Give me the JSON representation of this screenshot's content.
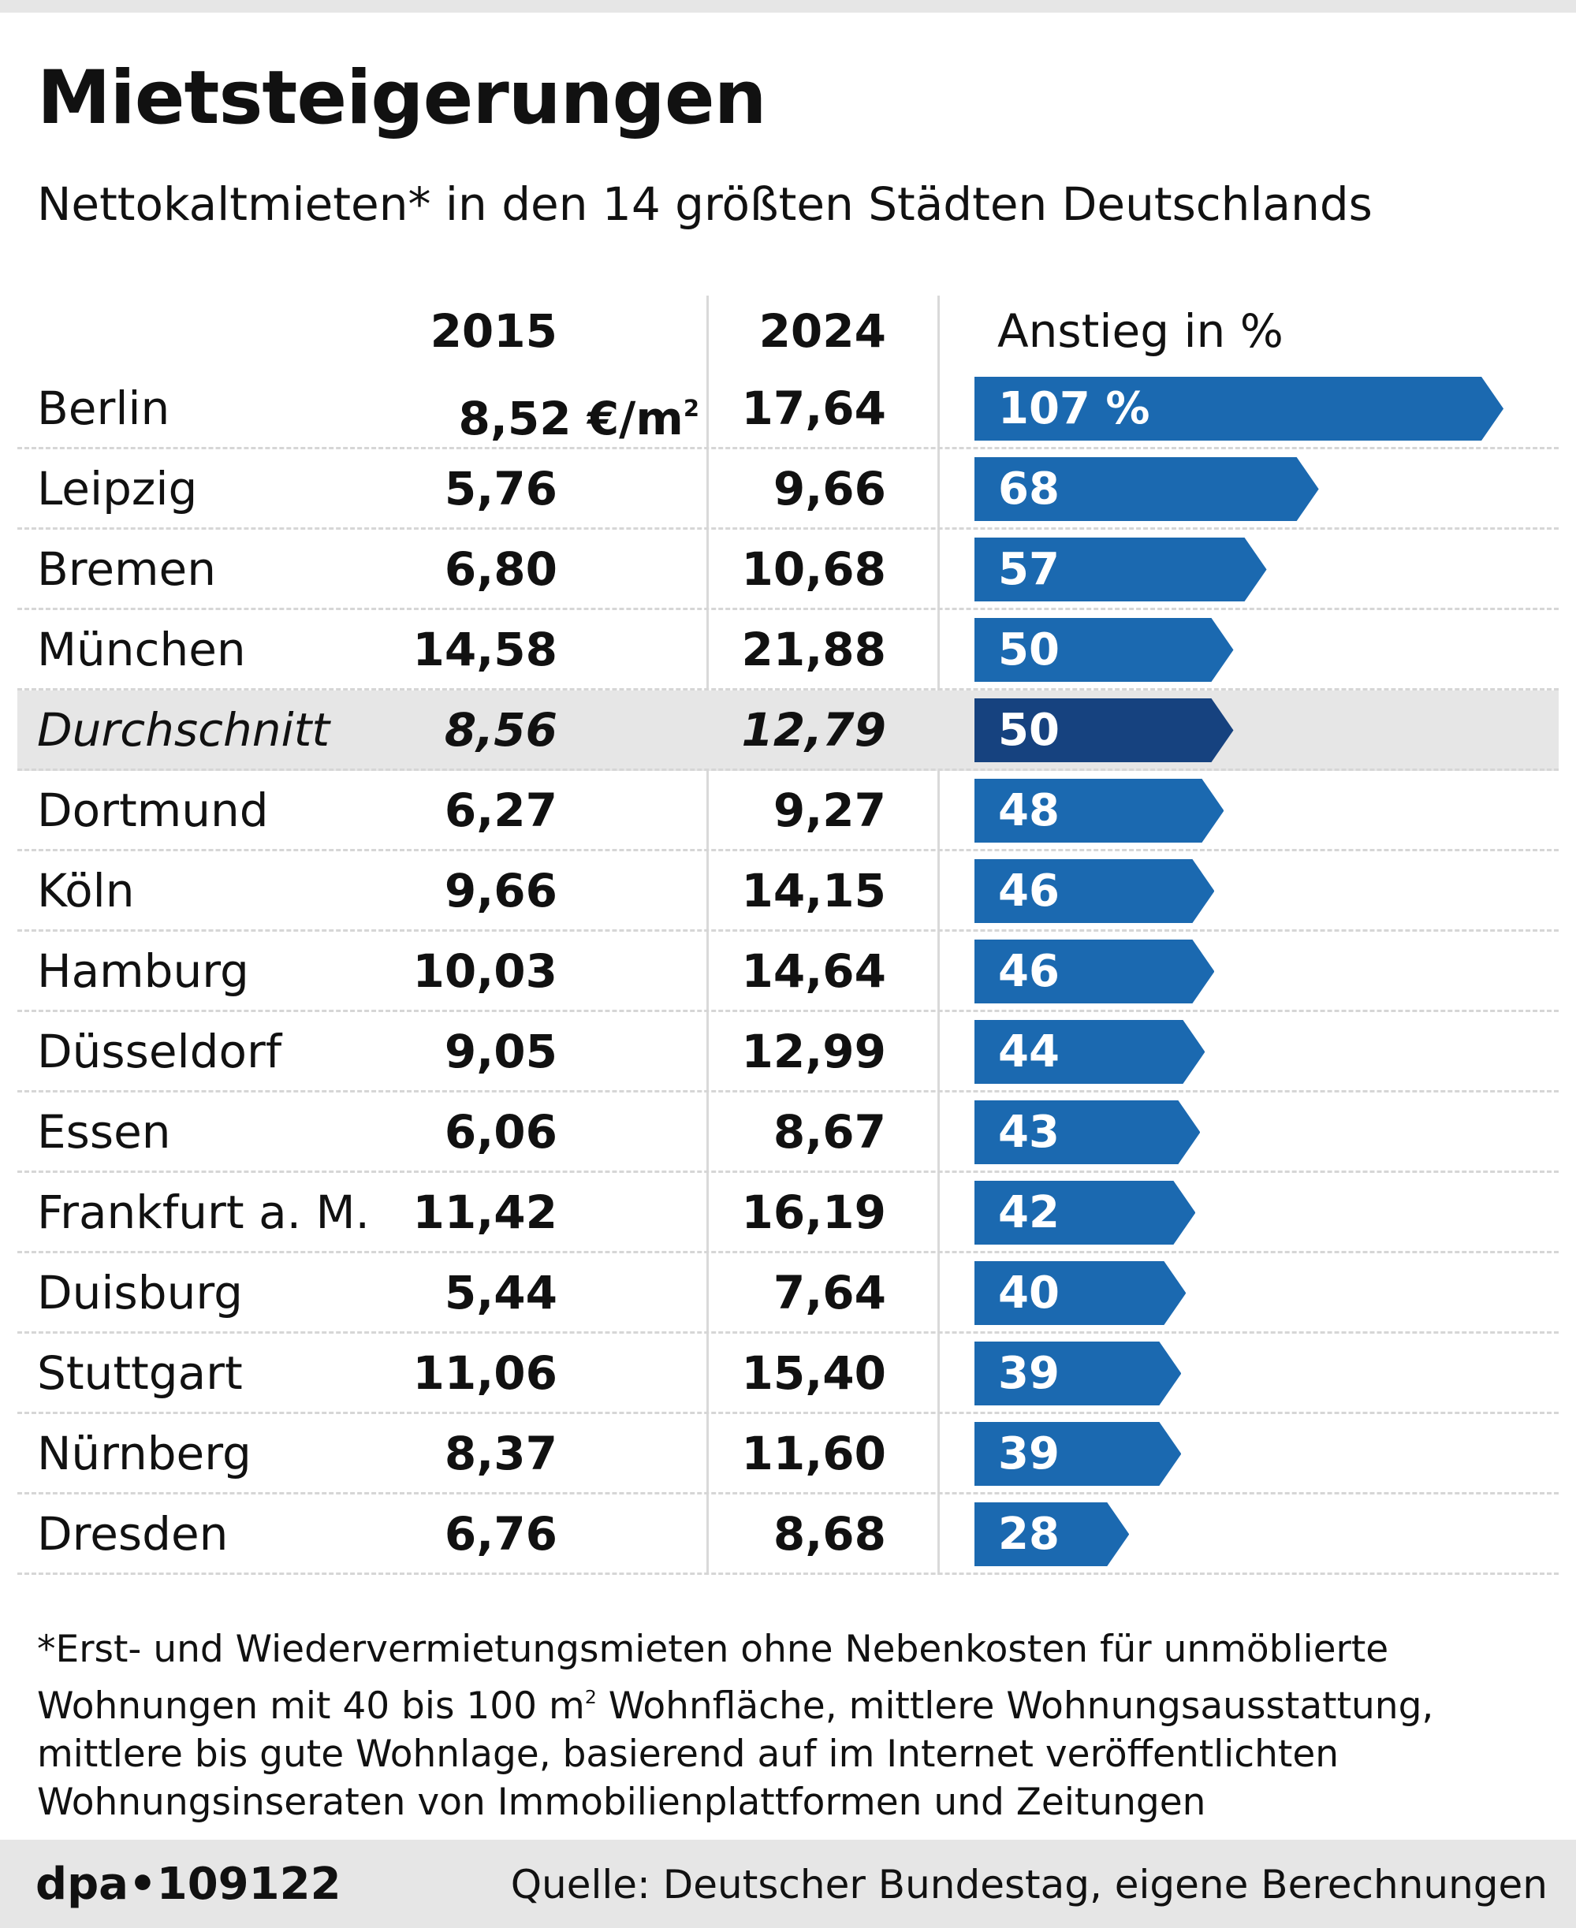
{
  "title": "Mietsteigerungen",
  "subtitle": "Nettokaltmieten* in den 14 größten Städten Deutschlands",
  "chart_data": {
    "type": "table",
    "columns": [
      "",
      "2015",
      "2024",
      "Anstieg in %"
    ],
    "unit_first_row": "€/m",
    "unit_superscript": "2",
    "pct_first_row_suffix": " %",
    "rows": [
      {
        "city": "Berlin",
        "v2015": "8,52",
        "v2024": "17,64",
        "pct": 107
      },
      {
        "city": "Leipzig",
        "v2015": "5,76",
        "v2024": "9,66",
        "pct": 68
      },
      {
        "city": "Bremen",
        "v2015": "6,80",
        "v2024": "10,68",
        "pct": 57
      },
      {
        "city": "München",
        "v2015": "14,58",
        "v2024": "21,88",
        "pct": 50
      },
      {
        "city": "Durchschnitt",
        "v2015": "8,56",
        "v2024": "12,79",
        "pct": 50,
        "highlight": true
      },
      {
        "city": "Dortmund",
        "v2015": "6,27",
        "v2024": "9,27",
        "pct": 48
      },
      {
        "city": "Köln",
        "v2015": "9,66",
        "v2024": "14,15",
        "pct": 46
      },
      {
        "city": "Hamburg",
        "v2015": "10,03",
        "v2024": "14,64",
        "pct": 46
      },
      {
        "city": "Düsseldorf",
        "v2015": "9,05",
        "v2024": "12,99",
        "pct": 44
      },
      {
        "city": "Essen",
        "v2015": "6,06",
        "v2024": "8,67",
        "pct": 43
      },
      {
        "city": "Frankfurt a. M.",
        "v2015": "11,42",
        "v2024": "16,19",
        "pct": 42
      },
      {
        "city": "Duisburg",
        "v2015": "5,44",
        "v2024": "7,64",
        "pct": 40
      },
      {
        "city": "Stuttgart",
        "v2015": "11,06",
        "v2024": "15,40",
        "pct": 39
      },
      {
        "city": "Nürnberg",
        "v2015": "8,37",
        "v2024": "11,60",
        "pct": 39
      },
      {
        "city": "Dresden",
        "v2015": "6,76",
        "v2024": "8,68",
        "pct": 28
      }
    ],
    "colors": {
      "bar": "#1b69b0",
      "highlight_bar": "#16427f",
      "highlight_row": "#e6e6e6"
    }
  },
  "footnote": {
    "part1": "*Erst- und Wiedervermietungsmieten ohne Nebenkosten für unmöblierte Wohnungen mit 40 bis 100 m",
    "sup": "2",
    "part2": " Wohnfläche, mittlere Wohnungsausstattung, mittlere bis gute Wohnlage, basierend auf im Internet veröffentlichten Wohnungsinseraten von Immobilienplattformen und Zeitungen"
  },
  "footer": {
    "credit": "dpa•109122",
    "source": "Quelle: Deutscher Bundestag, eigene Berechnungen"
  }
}
